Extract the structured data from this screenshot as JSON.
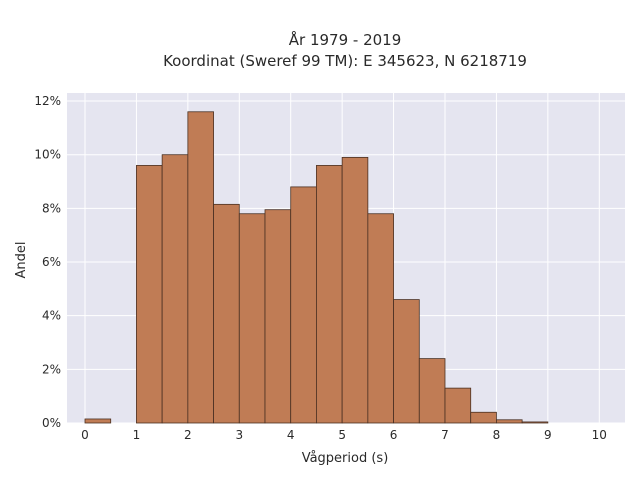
{
  "chart_data": {
    "type": "bar",
    "title_line1": "År 1979 - 2019",
    "title_line2": "Koordinat (Sweref 99 TM): E 345623, N 6218719",
    "xlabel": "Vågperiod (s)",
    "ylabel": "Andel",
    "xlim": [
      -0.35,
      10.5
    ],
    "ylim": [
      0,
      12.3
    ],
    "x_ticks": [
      0,
      1,
      2,
      3,
      4,
      5,
      6,
      7,
      8,
      9,
      10
    ],
    "x_tick_labels": [
      "0",
      "1",
      "2",
      "3",
      "4",
      "5",
      "6",
      "7",
      "8",
      "9",
      "10"
    ],
    "y_ticks": [
      0,
      2,
      4,
      6,
      8,
      10,
      12
    ],
    "y_tick_labels": [
      "0%",
      "2%",
      "4%",
      "6%",
      "8%",
      "10%",
      "12%"
    ],
    "bin_width": 0.5,
    "bins": [
      {
        "start": 0.0,
        "value": 0.15
      },
      {
        "start": 0.5,
        "value": 0.0
      },
      {
        "start": 1.0,
        "value": 9.6
      },
      {
        "start": 1.5,
        "value": 10.0
      },
      {
        "start": 2.0,
        "value": 11.6
      },
      {
        "start": 2.5,
        "value": 8.15
      },
      {
        "start": 3.0,
        "value": 7.8
      },
      {
        "start": 3.5,
        "value": 7.95
      },
      {
        "start": 4.0,
        "value": 8.8
      },
      {
        "start": 4.5,
        "value": 9.6
      },
      {
        "start": 5.0,
        "value": 9.9
      },
      {
        "start": 5.5,
        "value": 7.8
      },
      {
        "start": 6.0,
        "value": 4.6
      },
      {
        "start": 6.5,
        "value": 2.4
      },
      {
        "start": 7.0,
        "value": 1.3
      },
      {
        "start": 7.5,
        "value": 0.4
      },
      {
        "start": 8.0,
        "value": 0.12
      },
      {
        "start": 8.5,
        "value": 0.04
      },
      {
        "start": 9.0,
        "value": 0.0
      },
      {
        "start": 9.5,
        "value": 0.0
      }
    ],
    "grid": true,
    "colors": {
      "bar_fill": "#c07c55",
      "bar_stroke": "#4a3022",
      "plot_background": "#e5e5f0",
      "grid": "#ffffff"
    }
  }
}
